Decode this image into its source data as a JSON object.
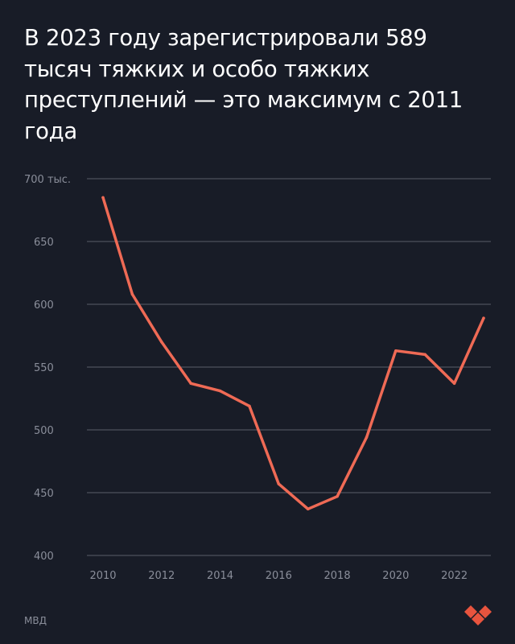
{
  "title": "В 2023 году зарегистрировали 589 тысяч тяжких и особо тяжких преступлений — это максимум с 2011 года",
  "source": "МВД",
  "colors": {
    "background": "#181c27",
    "line": "#ef6a55",
    "grid": "#5a5e6a",
    "tick_text": "#8a8e9a",
    "title_text": "#ffffff",
    "logo": "#e8543e"
  },
  "logo_icon": "brand-heart-logo",
  "chart_data": {
    "type": "line",
    "title": "В 2023 году зарегистрировали 589 тысяч тяжких и особо тяжких преступлений — это максимум с 2011 года",
    "xlabel": "",
    "ylabel": "",
    "x": [
      2010,
      2011,
      2012,
      2013,
      2014,
      2015,
      2016,
      2017,
      2018,
      2019,
      2020,
      2021,
      2022,
      2023
    ],
    "series": [
      {
        "values": [
          685,
          608,
          570,
          537,
          531,
          519,
          457,
          437,
          447,
          494,
          563,
          560,
          537,
          589
        ]
      }
    ],
    "ylim": [
      400,
      700
    ],
    "xlim": [
      2010,
      2023
    ],
    "y_ticks": [
      400,
      450,
      500,
      550,
      600,
      650,
      700
    ],
    "y_tick_labels": [
      "400",
      "450",
      "500",
      "550",
      "600",
      "650",
      "700 тыс."
    ],
    "x_ticks": [
      2010,
      2012,
      2014,
      2016,
      2018,
      2020,
      2022
    ],
    "x_tick_labels": [
      "2010",
      "2012",
      "2014",
      "2016",
      "2018",
      "2020",
      "2022"
    ],
    "grid": "horizontal",
    "legend": "none"
  }
}
